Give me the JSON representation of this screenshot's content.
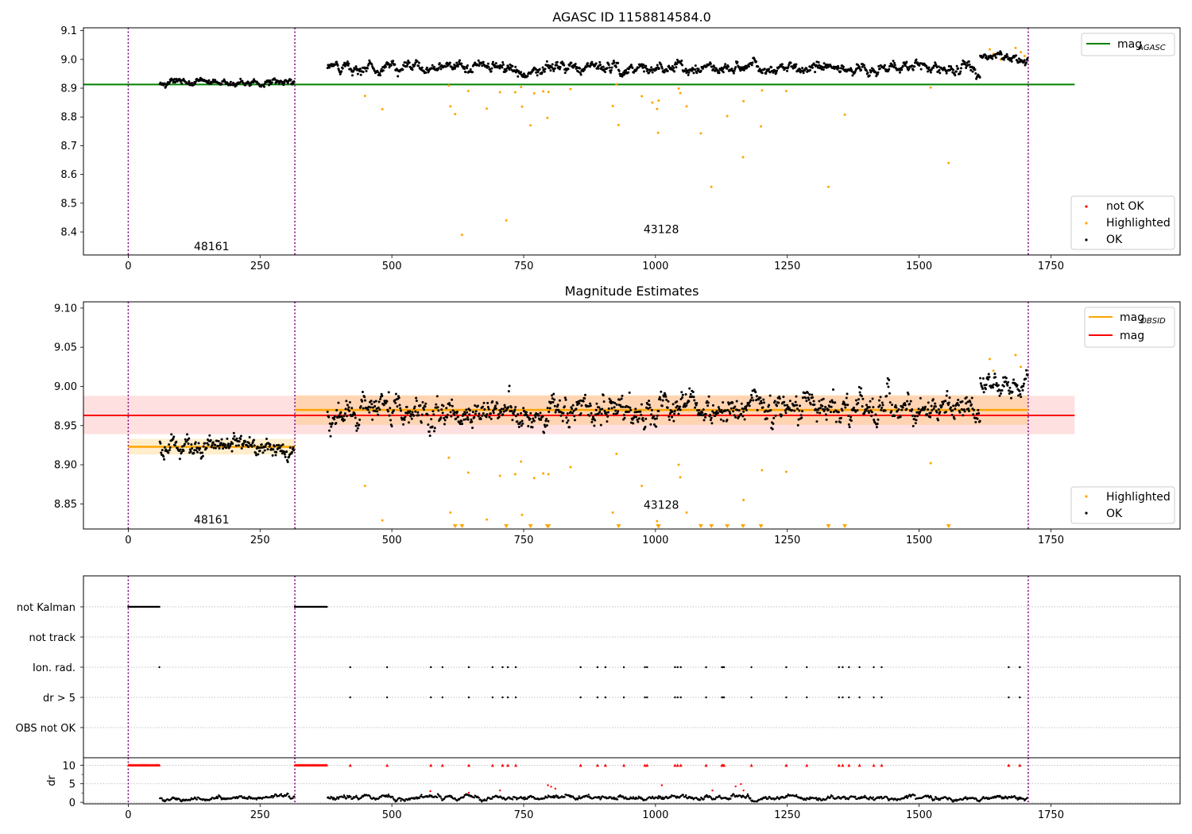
{
  "chart_data": [
    {
      "type": "scatter",
      "title": "AGASC ID 1158814584.0",
      "xlim": [
        -85,
        1995
      ],
      "ylim": [
        8.32,
        9.11
      ],
      "xticks": [
        0,
        250,
        500,
        750,
        1000,
        1250,
        1500,
        1750
      ],
      "xtick_labels": [
        "0",
        "250",
        "500",
        "750",
        "1000",
        "1250",
        "1500",
        "1750"
      ],
      "yticks": [
        8.4,
        8.5,
        8.6,
        8.7,
        8.8,
        8.9,
        9.0,
        9.1
      ],
      "ytick_labels": [
        "8.4",
        "8.5",
        "8.6",
        "8.7",
        "8.8",
        "8.9",
        "9.0",
        "9.1"
      ],
      "obs_boundaries": [
        0,
        316,
        1707
      ],
      "obs_labels": [
        {
          "text": "48161",
          "x": 158,
          "y": 8.35
        },
        {
          "text": "43128",
          "x": 1011,
          "y": 8.41
        }
      ],
      "mag_agasc": {
        "value": 8.913,
        "x_range": [
          -85,
          1795
        ],
        "color": "#008000"
      },
      "ok_segments": [
        {
          "x0": 60,
          "x1": 315,
          "mean": 8.922,
          "trend": -0.004,
          "noise": 0.008
        },
        {
          "x0": 378,
          "x1": 1616,
          "mean": 8.97,
          "trend": 0.0,
          "noise": 0.012
        },
        {
          "x0": 1616,
          "x1": 1706,
          "mean": 9.005,
          "trend": -0.01,
          "noise": 0.009
        }
      ],
      "ok_color": "#000000",
      "highlighted_color": "#ffa500",
      "not_ok_color": "#ff0000",
      "highlighted_points": [
        [
          449,
          8.873
        ],
        [
          482,
          8.827
        ],
        [
          608,
          8.909
        ],
        [
          611,
          8.837
        ],
        [
          620,
          8.81
        ],
        [
          633,
          8.39
        ],
        [
          645,
          8.89
        ],
        [
          680,
          8.829
        ],
        [
          705,
          8.886
        ],
        [
          717,
          8.44
        ],
        [
          734,
          8.886
        ],
        [
          745,
          8.904
        ],
        [
          747,
          8.836
        ],
        [
          763,
          8.771
        ],
        [
          770,
          8.882
        ],
        [
          787,
          8.889
        ],
        [
          795,
          8.797
        ],
        [
          797,
          8.887
        ],
        [
          839,
          8.897
        ],
        [
          919,
          8.838
        ],
        [
          926,
          8.913
        ],
        [
          930,
          8.772
        ],
        [
          974,
          8.872
        ],
        [
          994,
          8.85
        ],
        [
          1003,
          8.828
        ],
        [
          1005,
          8.745
        ],
        [
          1006,
          8.857
        ],
        [
          1044,
          8.899
        ],
        [
          1047,
          8.883
        ],
        [
          1059,
          8.837
        ],
        [
          1086,
          8.743
        ],
        [
          1106,
          8.557
        ],
        [
          1136,
          8.803
        ],
        [
          1166,
          8.66
        ],
        [
          1167,
          8.855
        ],
        [
          1200,
          8.767
        ],
        [
          1202,
          8.892
        ],
        [
          1248,
          8.89
        ],
        [
          1328,
          8.557
        ],
        [
          1359,
          8.808
        ],
        [
          1522,
          8.902
        ],
        [
          1556,
          8.64
        ],
        [
          1634,
          9.035
        ],
        [
          1641,
          9.02
        ],
        [
          1655,
          9.0
        ],
        [
          1683,
          9.04
        ],
        [
          1693,
          9.025
        ],
        [
          1700,
          9.012
        ]
      ],
      "legend_upper": [
        {
          "label": "mag",
          "sub": "AGASC",
          "kind": "line",
          "color": "#008000"
        }
      ],
      "legend_lower": [
        {
          "label": "not OK",
          "kind": "dot",
          "color": "#ff0000"
        },
        {
          "label": "Highlighted",
          "kind": "dot",
          "color": "#ffa500"
        },
        {
          "label": "OK",
          "kind": "dot",
          "color": "#000000"
        }
      ]
    },
    {
      "type": "scatter",
      "title": "Magnitude Estimates",
      "xlim": [
        -85,
        1995
      ],
      "ylim": [
        8.818,
        9.108
      ],
      "xticks": [
        0,
        250,
        500,
        750,
        1000,
        1250,
        1500,
        1750
      ],
      "xtick_labels": [
        "0",
        "250",
        "500",
        "750",
        "1000",
        "1250",
        "1500",
        "1750"
      ],
      "yticks": [
        8.85,
        8.9,
        8.95,
        9.0,
        9.05,
        9.1
      ],
      "ytick_labels": [
        "8.85",
        "8.90",
        "8.95",
        "9.00",
        "9.05",
        "9.10"
      ],
      "obs_boundaries": [
        0,
        316,
        1707
      ],
      "obs_labels": [
        {
          "text": "48161",
          "x": 158,
          "y": 8.83
        },
        {
          "text": "43128",
          "x": 1011,
          "y": 8.849
        }
      ],
      "mag": {
        "value": 8.963,
        "band": [
          8.939,
          8.988
        ],
        "x_range": [
          -85,
          1795
        ],
        "color": "#ff0000"
      },
      "mag_obsid": [
        {
          "x_range": [
            0,
            316
          ],
          "value": 8.923,
          "band": [
            8.913,
            8.933
          ]
        },
        {
          "x_range": [
            316,
            1707
          ],
          "value": 8.97,
          "band": [
            8.951,
            8.989
          ]
        }
      ],
      "obsid_color": "#ffa500",
      "ok_segments": [
        {
          "x0": 60,
          "x1": 315,
          "mean": 8.922,
          "trend": -0.004,
          "noise": 0.008
        },
        {
          "x0": 378,
          "x1": 1616,
          "mean": 8.97,
          "trend": 0.0,
          "noise": 0.012
        },
        {
          "x0": 1616,
          "x1": 1706,
          "mean": 9.005,
          "trend": -0.01,
          "noise": 0.009
        }
      ],
      "highlighted_points": [
        [
          449,
          8.873
        ],
        [
          482,
          8.829
        ],
        [
          608,
          8.909
        ],
        [
          611,
          8.839
        ],
        [
          645,
          8.89
        ],
        [
          680,
          8.83
        ],
        [
          705,
          8.886
        ],
        [
          734,
          8.888
        ],
        [
          745,
          8.904
        ],
        [
          747,
          8.836
        ],
        [
          770,
          8.883
        ],
        [
          787,
          8.889
        ],
        [
          797,
          8.888
        ],
        [
          839,
          8.897
        ],
        [
          919,
          8.839
        ],
        [
          926,
          8.914
        ],
        [
          974,
          8.873
        ],
        [
          1003,
          8.828
        ],
        [
          1044,
          8.9
        ],
        [
          1047,
          8.884
        ],
        [
          1059,
          8.839
        ],
        [
          1167,
          8.855
        ],
        [
          1202,
          8.893
        ],
        [
          1248,
          8.891
        ],
        [
          1522,
          8.902
        ],
        [
          1634,
          9.035
        ],
        [
          1641,
          9.02
        ],
        [
          1683,
          9.04
        ],
        [
          1693,
          9.025
        ]
      ],
      "clipped_markers_x": [
        620,
        633,
        717,
        763,
        795,
        797,
        930,
        1005,
        1006,
        1086,
        1106,
        1136,
        1166,
        1200,
        1328,
        1359,
        1556
      ],
      "legend_upper": [
        {
          "label": "mag",
          "sub": "OBSID",
          "kind": "line",
          "color": "#ffa500"
        },
        {
          "label": "mag",
          "sub": "",
          "kind": "line",
          "color": "#ff0000"
        }
      ],
      "legend_lower": [
        {
          "label": "Highlighted",
          "kind": "dot",
          "color": "#ffa500"
        },
        {
          "label": "OK",
          "kind": "dot",
          "color": "#000000"
        }
      ]
    },
    {
      "type": "scatter",
      "title": "",
      "xlim": [
        -85,
        1995
      ],
      "xticks": [
        0,
        250,
        500,
        750,
        1000,
        1250,
        1500,
        1750
      ],
      "xtick_labels": [
        "0",
        "250",
        "500",
        "750",
        "1000",
        "1250",
        "1500",
        "1750"
      ],
      "flag_rows": [
        "not Kalman",
        "not track",
        "Ion. rad.",
        "dr > 5",
        "OBS not OK"
      ],
      "not_kalman_ranges": [
        [
          0,
          60
        ],
        [
          316,
          378
        ]
      ],
      "flag_event_x": [
        59,
        421,
        491,
        574,
        596,
        646,
        691,
        710,
        720,
        735,
        858,
        890,
        905,
        940,
        980,
        984,
        1037,
        1042,
        1048,
        1096,
        1126,
        1128,
        1130,
        1182,
        1248,
        1287,
        1348,
        1355,
        1367,
        1387,
        1414,
        1429,
        1670,
        1691
      ],
      "dr_rows": {
        "ylabel": "dr",
        "ylim": [
          -0.4,
          12
        ],
        "yticks": [
          0,
          5,
          10
        ],
        "ytick_labels": [
          "0",
          "5",
          "10"
        ],
        "clip_value": 10
      },
      "dr_segments": [
        {
          "x0": 60,
          "x1": 315,
          "mean": 1.1,
          "noise": 0.35
        },
        {
          "x0": 378,
          "x1": 1706,
          "mean": 1.2,
          "noise": 0.4
        }
      ],
      "dr_red_points": [
        [
          573,
          3.0
        ],
        [
          646,
          2.6
        ],
        [
          705,
          3.2
        ],
        [
          796,
          4.6
        ],
        [
          802,
          4.2
        ],
        [
          810,
          3.7
        ],
        [
          1012,
          4.6
        ],
        [
          1108,
          3.2
        ],
        [
          1152,
          4.3
        ],
        [
          1162,
          4.9
        ],
        [
          1167,
          3.2
        ]
      ]
    }
  ]
}
